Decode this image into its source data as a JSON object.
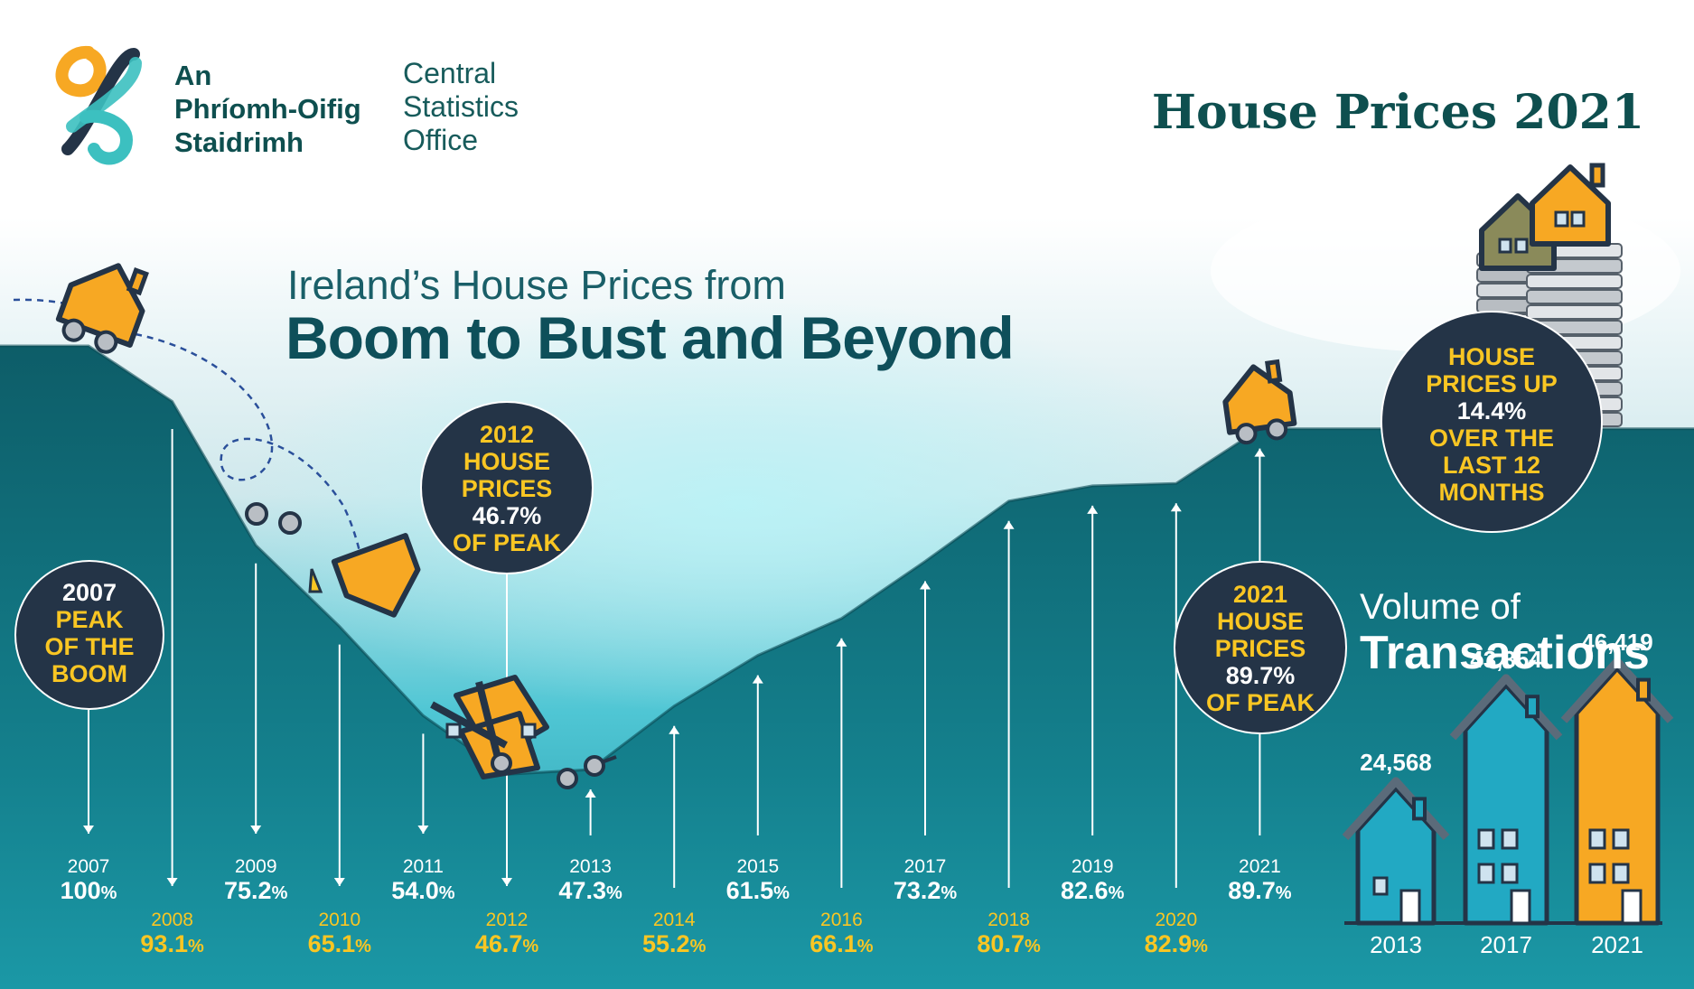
{
  "logo": {
    "irish_lines": [
      "An",
      "Phríomh-Oifig",
      "Staidrimh"
    ],
    "english_lines": [
      "Central",
      "Statistics",
      "Office"
    ]
  },
  "title": "House Prices 2021",
  "subtitle_line1": "Ireland’s House Prices from",
  "subtitle_line2": "Boom to Bust and Beyond",
  "colors": {
    "teal_dark": "#0d5d68",
    "teal_light": "#1f9aa8",
    "navy": "#243447",
    "yellow": "#f9c623",
    "orange": "#f7a823",
    "blue_house": "#22a9c3",
    "title_green": "#0e4f4f"
  },
  "callouts": {
    "peak_2007": [
      "2007",
      "PEAK",
      "OF THE",
      "BOOM"
    ],
    "prices_2012": [
      "2012",
      "HOUSE",
      "PRICES",
      "46.7%",
      "OF PEAK"
    ],
    "prices_2021": [
      "2021",
      "HOUSE",
      "PRICES",
      "89.7%",
      "OF PEAK"
    ],
    "up_12_months": [
      "HOUSE",
      "PRICES UP",
      "14.4%",
      "OVER THE",
      "LAST 12",
      "MONTHS"
    ]
  },
  "volume": {
    "title_line1": "Volume of",
    "title_line2": "Transactions"
  },
  "chart_data": [
    {
      "type": "area",
      "title": "Boom to Bust and Beyond",
      "unit": "% of peak",
      "x": [
        "2007",
        "2008",
        "2009",
        "2010",
        "2011",
        "2012",
        "2013",
        "2014",
        "2015",
        "2016",
        "2017",
        "2018",
        "2019",
        "2020",
        "2021"
      ],
      "values": [
        100,
        93.1,
        75.2,
        65.1,
        54.0,
        46.7,
        47.3,
        55.2,
        61.5,
        66.1,
        73.2,
        80.7,
        82.6,
        82.9,
        89.7
      ],
      "value_labels": [
        "100",
        "93.1",
        "75.2",
        "65.1",
        "54.0",
        "46.7",
        "47.3",
        "55.2",
        "61.5",
        "66.1",
        "73.2",
        "80.7",
        "82.6",
        "82.9",
        "89.7"
      ],
      "percent_sign": "%"
    },
    {
      "type": "bar",
      "title": "Volume of Transactions",
      "categories": [
        "2013",
        "2017",
        "2021"
      ],
      "values": [
        24568,
        43354,
        46419
      ],
      "value_labels": [
        "24,568",
        "43,354",
        "46,419"
      ]
    }
  ]
}
